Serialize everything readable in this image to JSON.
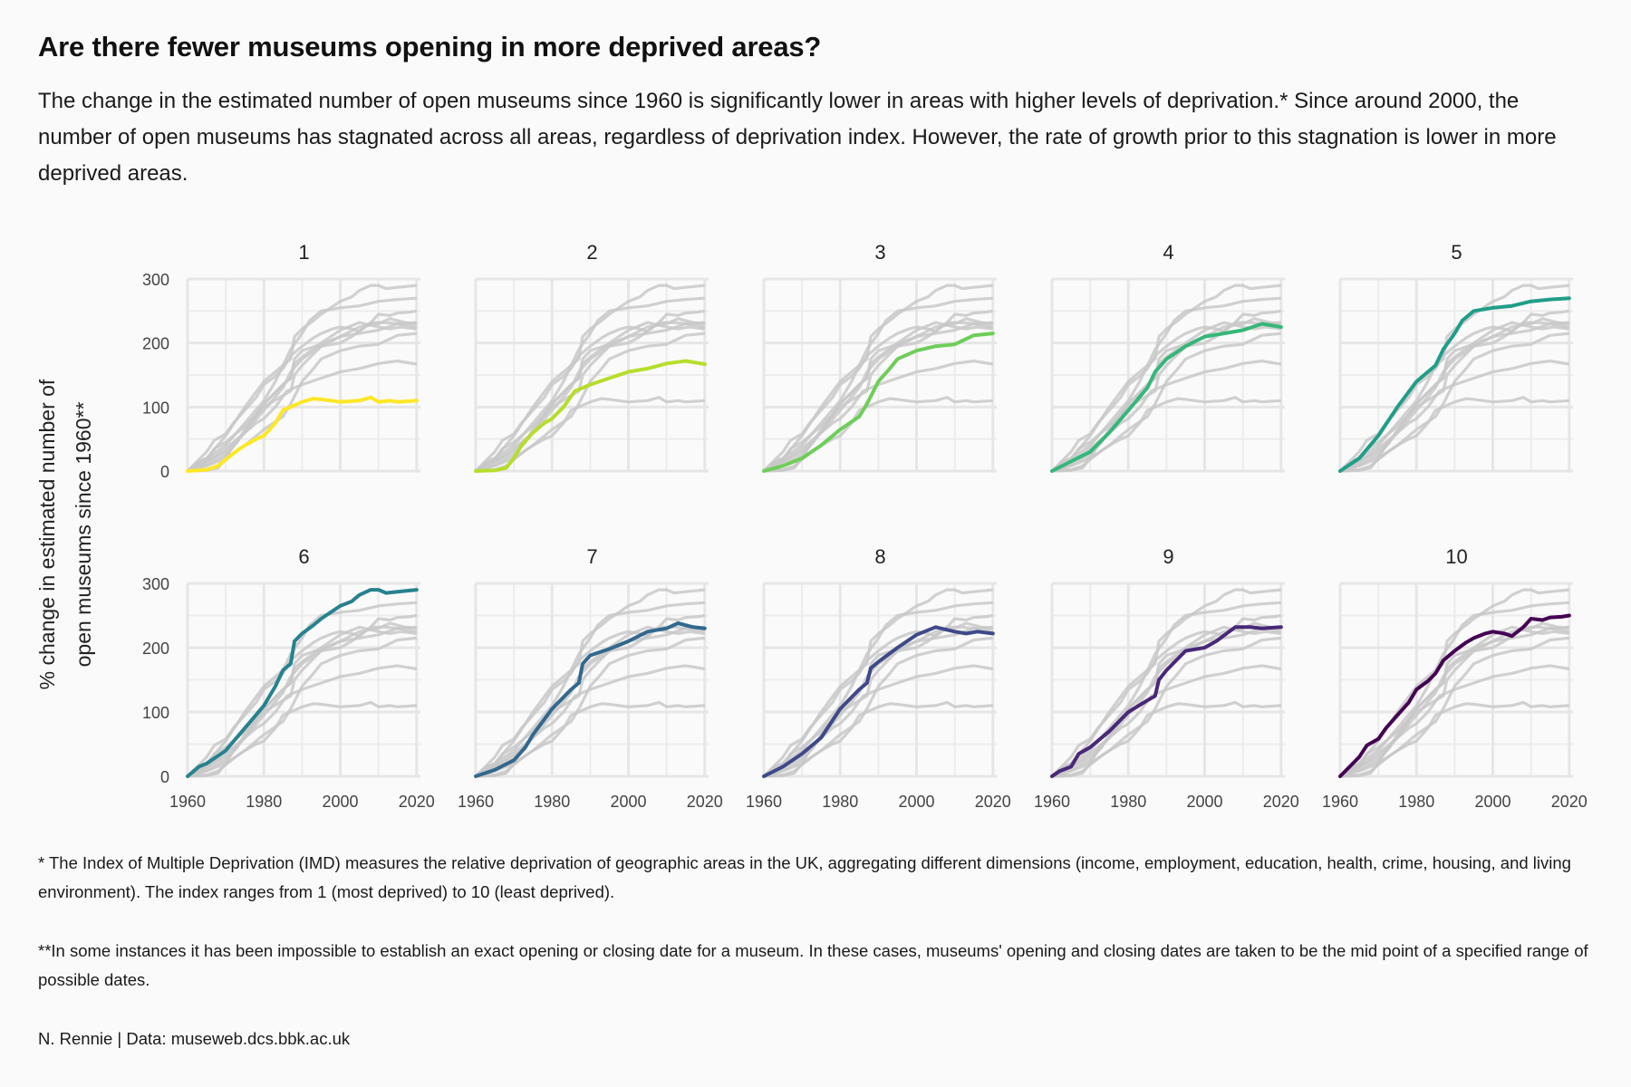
{
  "title": "Are there fewer museums opening in more deprived areas?",
  "subtitle": "The change in the estimated number of open museums since 1960 is significantly lower in areas with higher levels of deprivation.* Since around 2000, the number of open museums has stagnated across all areas, regardless of deprivation index. However, the rate of growth prior to this stagnation is lower in more deprived areas.",
  "footnotes": {
    "imd": "* The Index of Multiple Deprivation (IMD) measures the relative deprivation of geographic areas in the UK, aggregating different dimensions (income, employment, education, health, crime, housing, and living environment). The index ranges from 1 (most deprived) to 10 (least deprived).",
    "dates": "**In some instances it has been impossible to establish an exact opening or closing date for a museum. In these cases, museums' opening and closing dates are taken to be the mid point of a specified range of possible dates.",
    "credit": "N. Rennie | Data: museweb.dcs.bbk.ac.uk"
  },
  "chart_data": {
    "type": "line",
    "layout": "small-multiples",
    "title": "Are there fewer museums opening in more deprived areas?",
    "xlabel": "",
    "ylabel": "% change in estimated number of open museums since 1960**",
    "ylabel_lines": [
      "% change in estimated number of",
      "open museums since 1960**"
    ],
    "xlim": [
      1960,
      2021
    ],
    "ylim": [
      0,
      300
    ],
    "x_ticks": [
      1960,
      1980,
      2000,
      2020
    ],
    "x_tick_labels": [
      "1960",
      "1980",
      "2000",
      "2020"
    ],
    "y_ticks": [
      0,
      100,
      200,
      300
    ],
    "y_tick_labels": [
      "0",
      "100",
      "200",
      "300"
    ],
    "grid": true,
    "legend": "none",
    "background_series_color": "#c8c8c8",
    "series": [
      {
        "name": "1",
        "color": "#FDE725",
        "x": [
          1960,
          1965,
          1968,
          1970,
          1973,
          1975,
          1978,
          1980,
          1983,
          1985,
          1987,
          1990,
          1993,
          1995,
          2000,
          2005,
          2008,
          2010,
          2013,
          2015,
          2020
        ],
        "y": [
          0,
          2,
          8,
          18,
          32,
          40,
          50,
          55,
          75,
          95,
          100,
          108,
          113,
          112,
          108,
          110,
          115,
          108,
          110,
          108,
          110
        ]
      },
      {
        "name": "2",
        "color": "#B5DE2B",
        "x": [
          1960,
          1965,
          1968,
          1970,
          1972,
          1975,
          1978,
          1980,
          1983,
          1986,
          1990,
          1995,
          2000,
          2005,
          2010,
          2015,
          2020
        ],
        "y": [
          0,
          1,
          5,
          20,
          40,
          60,
          75,
          82,
          100,
          125,
          135,
          145,
          155,
          160,
          168,
          172,
          167
        ]
      },
      {
        "name": "3",
        "color": "#6ECE58",
        "x": [
          1960,
          1965,
          1970,
          1975,
          1980,
          1985,
          1987,
          1990,
          1993,
          1995,
          2000,
          2005,
          2010,
          2015,
          2020
        ],
        "y": [
          0,
          8,
          20,
          40,
          65,
          85,
          105,
          140,
          160,
          175,
          188,
          195,
          198,
          212,
          215
        ]
      },
      {
        "name": "4",
        "color": "#35B779",
        "x": [
          1960,
          1965,
          1970,
          1975,
          1980,
          1985,
          1987,
          1990,
          1995,
          2000,
          2005,
          2010,
          2015,
          2020
        ],
        "y": [
          0,
          15,
          30,
          60,
          95,
          130,
          155,
          175,
          195,
          210,
          215,
          220,
          230,
          225
        ]
      },
      {
        "name": "5",
        "color": "#1F9E89",
        "x": [
          1960,
          1965,
          1970,
          1975,
          1980,
          1985,
          1987,
          1990,
          1992,
          1995,
          2000,
          2005,
          2010,
          2015,
          2020
        ],
        "y": [
          0,
          20,
          55,
          100,
          140,
          165,
          190,
          215,
          235,
          250,
          255,
          258,
          265,
          268,
          270
        ]
      },
      {
        "name": "6",
        "color": "#26828E",
        "x": [
          1960,
          1963,
          1965,
          1970,
          1975,
          1980,
          1983,
          1985,
          1987,
          1988,
          1990,
          1993,
          1995,
          2000,
          2003,
          2005,
          2008,
          2010,
          2012,
          2015,
          2020
        ],
        "y": [
          0,
          15,
          20,
          40,
          75,
          110,
          140,
          165,
          175,
          210,
          222,
          235,
          245,
          265,
          272,
          282,
          290,
          290,
          285,
          287,
          290
        ]
      },
      {
        "name": "7",
        "color": "#31688E",
        "x": [
          1960,
          1965,
          1970,
          1973,
          1975,
          1980,
          1985,
          1987,
          1988,
          1990,
          1995,
          2000,
          2005,
          2010,
          2013,
          2017,
          2020
        ],
        "y": [
          0,
          10,
          25,
          45,
          65,
          105,
          135,
          145,
          175,
          188,
          198,
          210,
          225,
          230,
          238,
          232,
          230
        ]
      },
      {
        "name": "8",
        "color": "#3E4989",
        "x": [
          1960,
          1965,
          1970,
          1975,
          1980,
          1985,
          1987,
          1988,
          1990,
          1995,
          2000,
          2005,
          2010,
          2013,
          2016,
          2020
        ],
        "y": [
          0,
          15,
          35,
          60,
          105,
          135,
          145,
          168,
          178,
          200,
          220,
          232,
          225,
          222,
          225,
          222
        ]
      },
      {
        "name": "9",
        "color": "#482878",
        "x": [
          1960,
          1962,
          1965,
          1967,
          1970,
          1975,
          1980,
          1985,
          1987,
          1988,
          1990,
          1995,
          2000,
          2003,
          2008,
          2012,
          2015,
          2020
        ],
        "y": [
          0,
          8,
          15,
          35,
          45,
          70,
          100,
          118,
          125,
          150,
          165,
          195,
          200,
          210,
          232,
          232,
          230,
          232
        ]
      },
      {
        "name": "10",
        "color": "#440154",
        "x": [
          1960,
          1962,
          1965,
          1967,
          1970,
          1972,
          1975,
          1978,
          1980,
          1983,
          1985,
          1987,
          1990,
          1993,
          1995,
          1998,
          2000,
          2003,
          2005,
          2008,
          2010,
          2013,
          2015,
          2018,
          2020
        ],
        "y": [
          0,
          12,
          30,
          48,
          58,
          75,
          95,
          115,
          135,
          148,
          160,
          180,
          195,
          208,
          215,
          222,
          225,
          222,
          218,
          232,
          245,
          243,
          247,
          248,
          250
        ]
      }
    ]
  }
}
